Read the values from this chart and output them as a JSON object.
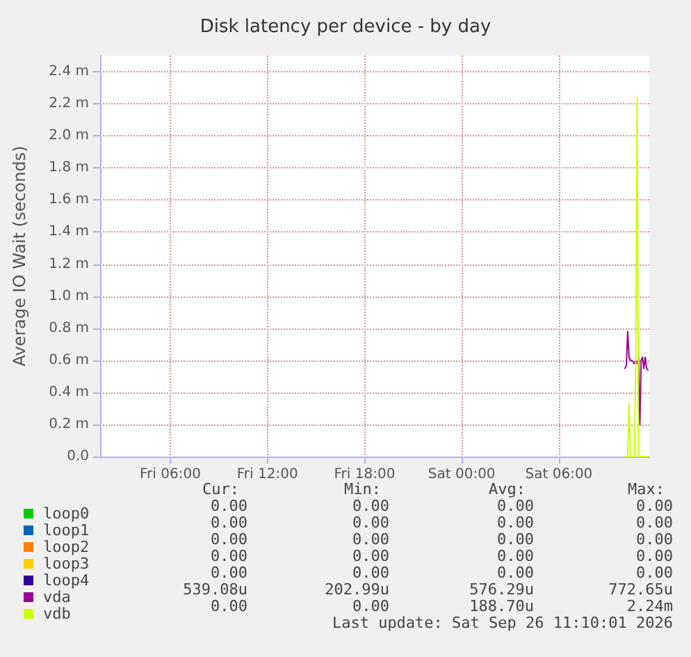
{
  "chart_data": {
    "type": "line",
    "title": "Disk latency per device - by day",
    "ylabel": "Average IO Wait (seconds)",
    "x": [
      "2026-09-26T10:05",
      "2026-09-26T10:10",
      "2026-09-26T10:15",
      "2026-09-26T10:20",
      "2026-09-26T10:25",
      "2026-09-26T10:30",
      "2026-09-26T10:35",
      "2026-09-26T10:40",
      "2026-09-26T10:45",
      "2026-09-26T10:50",
      "2026-09-26T10:55",
      "2026-09-26T11:00",
      "2026-09-26T11:05",
      "2026-09-26T11:10",
      "2026-09-26T11:15",
      "2026-09-26T11:20",
      "2026-09-26T11:25",
      "2026-09-26T11:30"
    ],
    "series": [
      {
        "name": "loop0",
        "color": "#00cc00",
        "values": [
          null,
          null,
          null,
          null,
          null,
          null,
          null,
          null,
          null,
          null,
          null,
          null,
          null,
          null,
          null,
          null,
          null,
          null
        ]
      },
      {
        "name": "loop1",
        "color": "#0066b3",
        "values": [
          null,
          null,
          null,
          null,
          null,
          null,
          null,
          null,
          null,
          null,
          null,
          null,
          null,
          null,
          null,
          null,
          null,
          null
        ]
      },
      {
        "name": "loop2",
        "color": "#ff8000",
        "values": [
          null,
          null,
          null,
          null,
          null,
          null,
          null,
          null,
          null,
          null,
          null,
          null,
          null,
          null,
          null,
          null,
          null,
          null
        ]
      },
      {
        "name": "loop3",
        "color": "#ffcc00",
        "values": [
          null,
          null,
          null,
          null,
          null,
          null,
          null,
          null,
          null,
          null,
          null,
          null,
          null,
          null,
          null,
          null,
          null,
          null
        ]
      },
      {
        "name": "loop4",
        "color": "#330099",
        "values": [
          null,
          null,
          null,
          null,
          null,
          null,
          null,
          null,
          null,
          null,
          null,
          null,
          null,
          null,
          null,
          null,
          null,
          null
        ]
      },
      {
        "name": "vda",
        "color": "#990099",
        "values": [
          0.55,
          0.57,
          0.78,
          0.62,
          0.6,
          0.6,
          0.59,
          0.58,
          0.6,
          0.58,
          0.62,
          0.2,
          0.6,
          0.62,
          0.55,
          0.62,
          0.55,
          0.54
        ]
      },
      {
        "name": "vdb",
        "color": "#ccff00",
        "values": [
          0,
          0,
          0,
          0.33,
          0,
          0,
          0,
          0,
          0.6,
          2.24,
          0,
          0,
          0,
          0,
          0,
          0,
          0,
          0
        ]
      }
    ],
    "xlim": [
      "2026-09-25T01:40",
      "2026-09-26T11:35"
    ],
    "xticks": [
      {
        "value": "2026-09-25T06:00",
        "label": "Fri 06:00"
      },
      {
        "value": "2026-09-25T12:00",
        "label": "Fri 12:00"
      },
      {
        "value": "2026-09-25T18:00",
        "label": "Fri 18:00"
      },
      {
        "value": "2026-09-26T00:00",
        "label": "Sat 00:00"
      },
      {
        "value": "2026-09-26T06:00",
        "label": "Sat 06:00"
      }
    ],
    "ylim": [
      0,
      2.5
    ],
    "yticks": [
      {
        "value": 0,
        "label": "0.0"
      },
      {
        "value": 0.2,
        "label": "0.2 m"
      },
      {
        "value": 0.4,
        "label": "0.4 m"
      },
      {
        "value": 0.6,
        "label": "0.6 m"
      },
      {
        "value": 0.8,
        "label": "0.8 m"
      },
      {
        "value": 1.0,
        "label": "1.0 m"
      },
      {
        "value": 1.2,
        "label": "1.2 m"
      },
      {
        "value": 1.4,
        "label": "1.4 m"
      },
      {
        "value": 1.6,
        "label": "1.6 m"
      },
      {
        "value": 1.8,
        "label": "1.8 m"
      },
      {
        "value": 2.0,
        "label": "2.0 m"
      },
      {
        "value": 2.2,
        "label": "2.2 m"
      },
      {
        "value": 2.4,
        "label": "2.4 m"
      }
    ],
    "grid": true,
    "legend": "bottom",
    "marker": "none",
    "line_style": "solid",
    "annotations": [
      "Cur:",
      "Min:",
      "Avg:",
      "Max:",
      "0.00",
      "0.00",
      "0.00",
      "0.00",
      "0.00",
      "0.00",
      "0.00",
      "0.00",
      "0.00",
      "0.00",
      "0.00",
      "0.00",
      "0.00",
      "0.00",
      "0.00",
      "0.00",
      "0.00",
      "0.00",
      "0.00",
      "0.00",
      "539.08u",
      "202.99u",
      "576.29u",
      "772.65u",
      "0.00",
      "0.00",
      "188.70u",
      "2.24m",
      "Last update: Sat Sep 26 11:10:01 2026"
    ]
  }
}
